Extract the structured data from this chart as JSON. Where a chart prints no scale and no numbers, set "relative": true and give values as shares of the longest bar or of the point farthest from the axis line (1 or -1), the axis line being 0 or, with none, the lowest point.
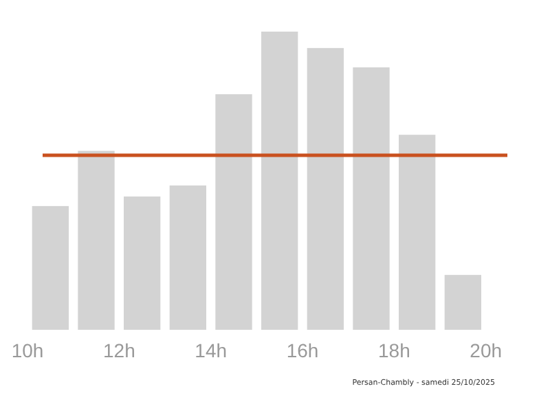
{
  "chart_data": {
    "type": "bar",
    "relative": true,
    "x": [
      10.5,
      11.5,
      12.5,
      13.5,
      14.5,
      15.5,
      16.5,
      17.5,
      18.5,
      19.5
    ],
    "series": [
      {
        "color": "#d3d3d3",
        "values": [
          0.415,
          0.6,
          0.447,
          0.484,
          0.79,
          1,
          0.945,
          0.88,
          0.654,
          0.184
        ]
      }
    ],
    "xlim": [
      10,
      20.5
    ],
    "xticks": [
      {
        "value": 10,
        "label": "10h"
      },
      {
        "value": 12,
        "label": "12h"
      },
      {
        "value": 14,
        "label": "14h"
      },
      {
        "value": 16,
        "label": "16h"
      },
      {
        "value": 18,
        "label": "18h"
      },
      {
        "value": 20,
        "label": "20h"
      }
    ],
    "ref_lines": [
      {
        "axis": "y",
        "value": 0.585,
        "color": "#c9511f"
      }
    ],
    "annotations": [
      "Persan-Chambly - samedi 25/10/2025"
    ]
  }
}
